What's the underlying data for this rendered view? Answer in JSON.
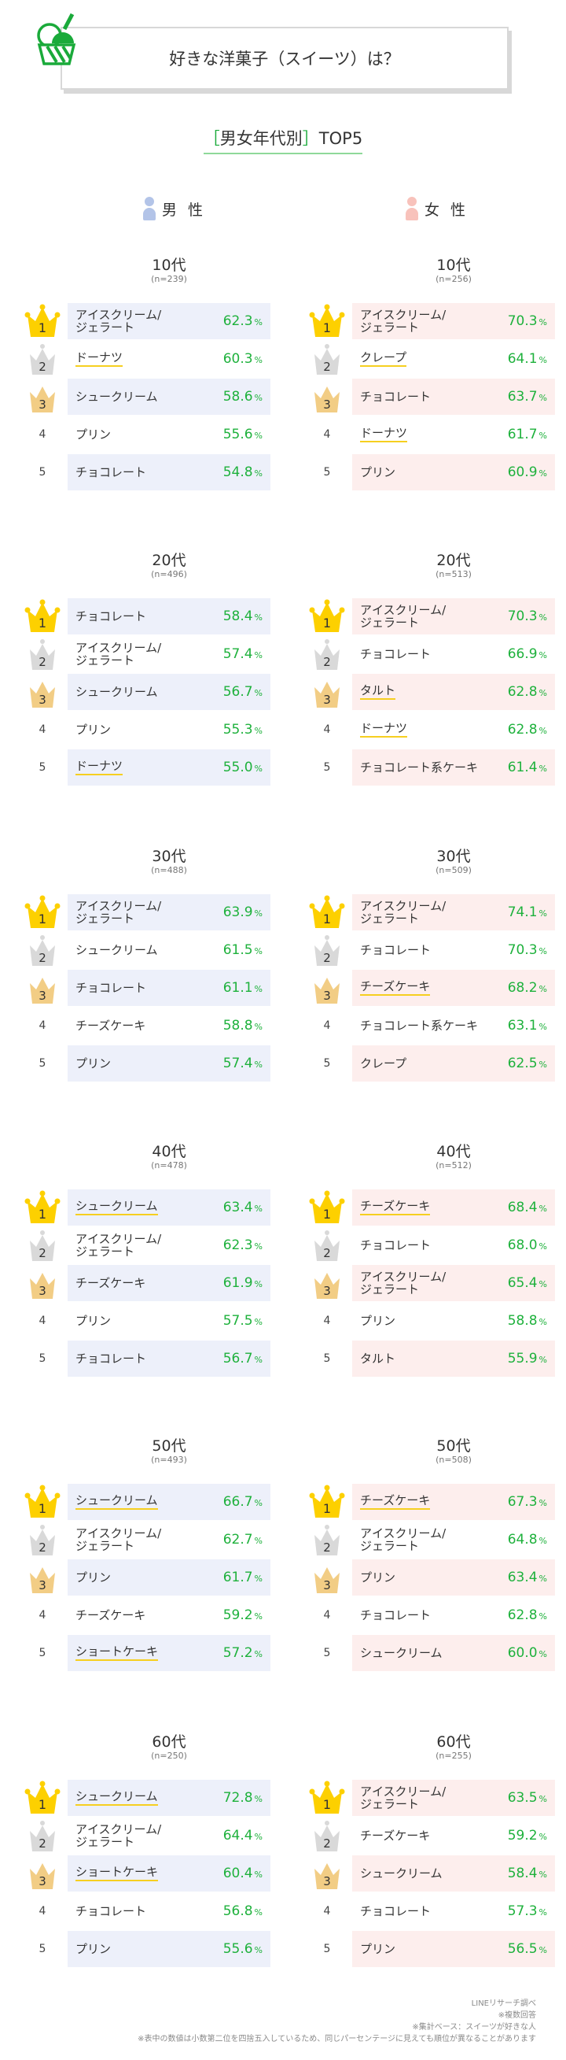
{
  "header": {
    "title": "好きな洋菓子（スイーツ）は？",
    "icon": "ice-cream-icon",
    "subtitle_open": "［",
    "subtitle_label": "男女年代別",
    "subtitle_close": "］",
    "subtitle_suffix": "TOP5"
  },
  "columns": {
    "male_label": "男 性",
    "female_label": "女 性",
    "male_color": "#b3c4e8",
    "female_color": "#f8c2bb"
  },
  "colors": {
    "accent_green": "#1eb13c",
    "gold": "#fdd000",
    "silver": "#d9d9d9",
    "bronze": "#f2cd85",
    "male_row_bg": "#edf0fa",
    "female_row_bg": "#fdeeed",
    "underline": "#f6cf20"
  },
  "percent_unit": "%",
  "sections": [
    {
      "male": {
        "age": "10代",
        "n": "(n=239)",
        "items": [
          {
            "rank": "1",
            "name": "アイスクリーム/\nジェラート",
            "pct": "62.3",
            "ul": false
          },
          {
            "rank": "2",
            "name": "ドーナツ",
            "pct": "60.3",
            "ul": true
          },
          {
            "rank": "3",
            "name": "シュークリーム",
            "pct": "58.6",
            "ul": false
          },
          {
            "rank": "4",
            "name": "プリン",
            "pct": "55.6",
            "ul": false
          },
          {
            "rank": "5",
            "name": "チョコレート",
            "pct": "54.8",
            "ul": false
          }
        ]
      },
      "female": {
        "age": "10代",
        "n": "(n=256)",
        "items": [
          {
            "rank": "1",
            "name": "アイスクリーム/\nジェラート",
            "pct": "70.3",
            "ul": false
          },
          {
            "rank": "2",
            "name": "クレープ",
            "pct": "64.1",
            "ul": true
          },
          {
            "rank": "3",
            "name": "チョコレート",
            "pct": "63.7",
            "ul": false
          },
          {
            "rank": "4",
            "name": "ドーナツ",
            "pct": "61.7",
            "ul": true
          },
          {
            "rank": "5",
            "name": "プリン",
            "pct": "60.9",
            "ul": false
          }
        ]
      }
    },
    {
      "male": {
        "age": "20代",
        "n": "(n=496)",
        "items": [
          {
            "rank": "1",
            "name": "チョコレート",
            "pct": "58.4",
            "ul": false
          },
          {
            "rank": "2",
            "name": "アイスクリーム/\nジェラート",
            "pct": "57.4",
            "ul": false
          },
          {
            "rank": "3",
            "name": "シュークリーム",
            "pct": "56.7",
            "ul": false
          },
          {
            "rank": "4",
            "name": "プリン",
            "pct": "55.3",
            "ul": false
          },
          {
            "rank": "5",
            "name": "ドーナツ",
            "pct": "55.0",
            "ul": true
          }
        ]
      },
      "female": {
        "age": "20代",
        "n": "(n=513)",
        "items": [
          {
            "rank": "1",
            "name": "アイスクリーム/\nジェラート",
            "pct": "70.3",
            "ul": false
          },
          {
            "rank": "2",
            "name": "チョコレート",
            "pct": "66.9",
            "ul": false
          },
          {
            "rank": "3",
            "name": "タルト",
            "pct": "62.8",
            "ul": true
          },
          {
            "rank": "4",
            "name": "ドーナツ",
            "pct": "62.8",
            "ul": true
          },
          {
            "rank": "5",
            "name": "チョコレート系ケーキ",
            "pct": "61.4",
            "ul": false
          }
        ]
      }
    },
    {
      "male": {
        "age": "30代",
        "n": "(n=488)",
        "items": [
          {
            "rank": "1",
            "name": "アイスクリーム/\nジェラート",
            "pct": "63.9",
            "ul": false
          },
          {
            "rank": "2",
            "name": "シュークリーム",
            "pct": "61.5",
            "ul": false
          },
          {
            "rank": "3",
            "name": "チョコレート",
            "pct": "61.1",
            "ul": false
          },
          {
            "rank": "4",
            "name": "チーズケーキ",
            "pct": "58.8",
            "ul": false
          },
          {
            "rank": "5",
            "name": "プリン",
            "pct": "57.4",
            "ul": false
          }
        ]
      },
      "female": {
        "age": "30代",
        "n": "(n=509)",
        "items": [
          {
            "rank": "1",
            "name": "アイスクリーム/\nジェラート",
            "pct": "74.1",
            "ul": false
          },
          {
            "rank": "2",
            "name": "チョコレート",
            "pct": "70.3",
            "ul": false
          },
          {
            "rank": "3",
            "name": "チーズケーキ",
            "pct": "68.2",
            "ul": true
          },
          {
            "rank": "4",
            "name": "チョコレート系ケーキ",
            "pct": "63.1",
            "ul": false
          },
          {
            "rank": "5",
            "name": "クレープ",
            "pct": "62.5",
            "ul": false
          }
        ]
      }
    },
    {
      "male": {
        "age": "40代",
        "n": "(n=478)",
        "items": [
          {
            "rank": "1",
            "name": "シュークリーム",
            "pct": "63.4",
            "ul": true
          },
          {
            "rank": "2",
            "name": "アイスクリーム/\nジェラート",
            "pct": "62.3",
            "ul": false
          },
          {
            "rank": "3",
            "name": "チーズケーキ",
            "pct": "61.9",
            "ul": false
          },
          {
            "rank": "4",
            "name": "プリン",
            "pct": "57.5",
            "ul": false
          },
          {
            "rank": "5",
            "name": "チョコレート",
            "pct": "56.7",
            "ul": false
          }
        ]
      },
      "female": {
        "age": "40代",
        "n": "(n=512)",
        "items": [
          {
            "rank": "1",
            "name": "チーズケーキ",
            "pct": "68.4",
            "ul": true
          },
          {
            "rank": "2",
            "name": "チョコレート",
            "pct": "68.0",
            "ul": false
          },
          {
            "rank": "3",
            "name": "アイスクリーム/\nジェラート",
            "pct": "65.4",
            "ul": false
          },
          {
            "rank": "4",
            "name": "プリン",
            "pct": "58.8",
            "ul": false
          },
          {
            "rank": "5",
            "name": "タルト",
            "pct": "55.9",
            "ul": false
          }
        ]
      }
    },
    {
      "male": {
        "age": "50代",
        "n": "(n=493)",
        "items": [
          {
            "rank": "1",
            "name": "シュークリーム",
            "pct": "66.7",
            "ul": true
          },
          {
            "rank": "2",
            "name": "アイスクリーム/\nジェラート",
            "pct": "62.7",
            "ul": false
          },
          {
            "rank": "3",
            "name": "プリン",
            "pct": "61.7",
            "ul": false
          },
          {
            "rank": "4",
            "name": "チーズケーキ",
            "pct": "59.2",
            "ul": false
          },
          {
            "rank": "5",
            "name": "ショートケーキ",
            "pct": "57.2",
            "ul": true
          }
        ]
      },
      "female": {
        "age": "50代",
        "n": "(n=508)",
        "items": [
          {
            "rank": "1",
            "name": "チーズケーキ",
            "pct": "67.3",
            "ul": true
          },
          {
            "rank": "2",
            "name": "アイスクリーム/\nジェラート",
            "pct": "64.8",
            "ul": false
          },
          {
            "rank": "3",
            "name": "プリン",
            "pct": "63.4",
            "ul": false
          },
          {
            "rank": "4",
            "name": "チョコレート",
            "pct": "62.8",
            "ul": false
          },
          {
            "rank": "5",
            "name": "シュークリーム",
            "pct": "60.0",
            "ul": false
          }
        ]
      }
    },
    {
      "male": {
        "age": "60代",
        "n": "(n=250)",
        "items": [
          {
            "rank": "1",
            "name": "シュークリーム",
            "pct": "72.8",
            "ul": true
          },
          {
            "rank": "2",
            "name": "アイスクリーム/\nジェラート",
            "pct": "64.4",
            "ul": false
          },
          {
            "rank": "3",
            "name": "ショートケーキ",
            "pct": "60.4",
            "ul": true
          },
          {
            "rank": "4",
            "name": "チョコレート",
            "pct": "56.8",
            "ul": false
          },
          {
            "rank": "5",
            "name": "プリン",
            "pct": "55.6",
            "ul": false
          }
        ]
      },
      "female": {
        "age": "60代",
        "n": "(n=255)",
        "items": [
          {
            "rank": "1",
            "name": "アイスクリーム/\nジェラート",
            "pct": "63.5",
            "ul": false
          },
          {
            "rank": "2",
            "name": "チーズケーキ",
            "pct": "59.2",
            "ul": false
          },
          {
            "rank": "3",
            "name": "シュークリーム",
            "pct": "58.4",
            "ul": false
          },
          {
            "rank": "4",
            "name": "チョコレート",
            "pct": "57.3",
            "ul": false
          },
          {
            "rank": "5",
            "name": "プリン",
            "pct": "56.5",
            "ul": false
          }
        ]
      }
    }
  ],
  "footer": {
    "notes": [
      "LINEリサーチ調べ",
      "※複数回答",
      "※集計ベース：スイーツが好きな人",
      "※表中の数値は小数第二位を四捨五入しているため、同じパーセンテージに見えても順位が異なることがあります"
    ]
  }
}
